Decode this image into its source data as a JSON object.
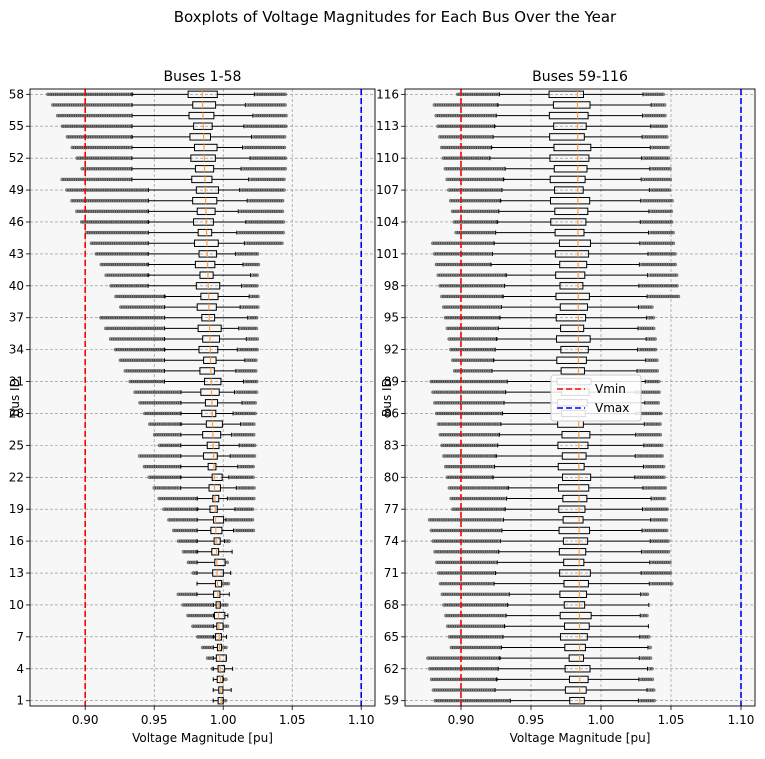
{
  "figure": {
    "suptitle": "Boxplots of Voltage Magnitudes for Each Bus Over the Year"
  },
  "colors": {
    "panel_bg": "#f7f7f7",
    "vmin_line": "#ff0000",
    "vmax_line": "#0000ff",
    "median": "#ff9f40",
    "box": "#000000",
    "grid": "#888888",
    "outlier": "#333333"
  },
  "chart_data": [
    {
      "type": "boxplot",
      "orientation": "horizontal",
      "title": "Buses 1-58",
      "xlabel": "Voltage Magnitude [pu]",
      "ylabel": "Bus ID",
      "xlim": [
        0.86,
        1.11
      ],
      "ylim": [
        0.5,
        58.5
      ],
      "xticks": [
        0.9,
        0.95,
        1.0,
        1.05,
        1.1
      ],
      "xtick_labels": [
        "0.90",
        "0.95",
        "1.00",
        "1.05",
        "1.10"
      ],
      "yticks": [
        1,
        4,
        7,
        10,
        13,
        16,
        19,
        22,
        25,
        28,
        31,
        34,
        37,
        40,
        43,
        46,
        49,
        52,
        55,
        58
      ],
      "grid": true,
      "reference_lines": [
        {
          "name": "Vmin",
          "x": 0.9,
          "style": "dashed",
          "color": "#ff0000"
        },
        {
          "name": "Vmax",
          "x": 1.1,
          "style": "dashed",
          "color": "#0000ff"
        }
      ],
      "bus_range": [
        1,
        58
      ],
      "stats_model": {
        "description": "approximate per-bus boxplot statistics read from the chart",
        "median": {
          "at_first": 1.0,
          "at_last": 0.985
        },
        "q1": {
          "at_first": 0.998,
          "at_last": 0.975
        },
        "q3": {
          "at_first": 1.0,
          "at_last": 0.993
        },
        "whisker_low": {
          "at_first": 0.998,
          "at_last": 0.93
        },
        "whisker_high": {
          "at_first": 1.0,
          "at_last": 1.02
        },
        "outlier_min": {
          "at_first": 0.998,
          "at_last": 0.875
        },
        "outlier_max": {
          "at_first": 1.001,
          "at_last": 1.047
        }
      }
    },
    {
      "type": "boxplot",
      "orientation": "horizontal",
      "title": "Buses 59-116",
      "xlabel": "Voltage Magnitude [pu]",
      "ylabel": "Bus ID",
      "xlim": [
        0.86,
        1.11
      ],
      "ylim": [
        58.5,
        116.5
      ],
      "xticks": [
        0.9,
        0.95,
        1.0,
        1.05,
        1.1
      ],
      "xtick_labels": [
        "0.90",
        "0.95",
        "1.00",
        "1.05",
        "1.10"
      ],
      "yticks": [
        59,
        62,
        65,
        68,
        71,
        74,
        77,
        80,
        83,
        86,
        89,
        92,
        95,
        98,
        101,
        104,
        107,
        110,
        113,
        116
      ],
      "grid": true,
      "legend": {
        "placement": "center",
        "entries": [
          {
            "label": "Vmin",
            "color": "#ff0000"
          },
          {
            "label": "Vmax",
            "color": "#0000ff"
          }
        ]
      },
      "reference_lines": [
        {
          "name": "Vmin",
          "x": 0.9,
          "style": "dashed",
          "color": "#ff0000"
        },
        {
          "name": "Vmax",
          "x": 1.1,
          "style": "dashed",
          "color": "#0000ff"
        }
      ],
      "bus_range": [
        59,
        116
      ],
      "stats_model": {
        "description": "approximate per-bus boxplot statistics read from the chart",
        "median": {
          "at_first": 0.985,
          "at_last": 0.982
        },
        "q1": {
          "at_first": 0.975,
          "at_last": 0.965
        },
        "q3": {
          "at_first": 0.99,
          "at_last": 0.99
        },
        "whisker_low": {
          "at_first": 0.93,
          "at_last": 0.925
        },
        "whisker_high": {
          "at_first": 1.03,
          "at_last": 1.03
        },
        "outlier_min": {
          "at_first": 0.885,
          "at_last": 0.89
        },
        "outlier_max": {
          "at_first": 1.04,
          "at_last": 1.05
        }
      }
    }
  ]
}
